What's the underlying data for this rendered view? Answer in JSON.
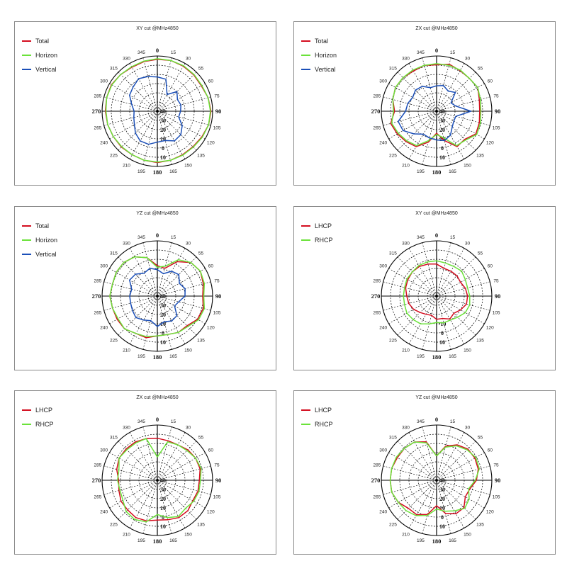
{
  "colors": {
    "total": "#d40d1f",
    "horizon": "#6be23a",
    "vertical": "#1b4fb8",
    "lhcp": "#d40d1f",
    "rhcp": "#6be23a",
    "grid": "#000000",
    "border": "#8a8a8a"
  },
  "chart_data": [
    {
      "type": "polar-line",
      "title": "XY cut @MHz4850",
      "angle_labels": [
        "0",
        "15",
        "30",
        "55",
        "60",
        "75",
        "90",
        "105",
        "120",
        "135",
        "150",
        "165",
        "180",
        "195",
        "210",
        "225",
        "240",
        "265",
        "270",
        "285",
        "300",
        "315",
        "330",
        "345"
      ],
      "radial_labels": [
        "10",
        "0",
        "10",
        "20",
        "30",
        "40"
      ],
      "legend": [
        "Total",
        "Horizon",
        "Vertical"
      ],
      "series": [
        {
          "name": "Total",
          "values": [
            0.94,
            0.95,
            0.94,
            0.93,
            0.92,
            0.95,
            0.97,
            0.96,
            0.93,
            0.91,
            0.91,
            0.92,
            0.93,
            0.92,
            0.91,
            0.92,
            0.92,
            0.93,
            0.94,
            0.95,
            0.96,
            0.94,
            0.92,
            0.93
          ]
        },
        {
          "name": "Horizon",
          "values": [
            0.95,
            0.95,
            0.95,
            0.94,
            0.93,
            0.95,
            0.96,
            0.96,
            0.94,
            0.92,
            0.92,
            0.92,
            0.92,
            0.92,
            0.91,
            0.91,
            0.92,
            0.93,
            0.93,
            0.95,
            0.95,
            0.94,
            0.93,
            0.94
          ]
        },
        {
          "name": "Vertical",
          "values": [
            0.62,
            0.6,
            0.35,
            0.5,
            0.42,
            0.44,
            0.42,
            0.4,
            0.52,
            0.6,
            0.62,
            0.55,
            0.56,
            0.62,
            0.62,
            0.56,
            0.48,
            0.44,
            0.42,
            0.48,
            0.58,
            0.62,
            0.68,
            0.65
          ]
        }
      ]
    },
    {
      "type": "polar-line",
      "title": "ZX cut @MHz4850",
      "angle_labels": [
        "0",
        "15",
        "30",
        "55",
        "60",
        "75",
        "90",
        "105",
        "120",
        "135",
        "150",
        "165",
        "180",
        "195",
        "210",
        "225",
        "240",
        "265",
        "270",
        "285",
        "300",
        "315",
        "330",
        "345"
      ],
      "radial_labels": [
        "10",
        "0",
        "10",
        "20",
        "30",
        "40"
      ],
      "legend": [
        "Total",
        "Horizon",
        "Vertical"
      ],
      "series": [
        {
          "name": "Total",
          "values": [
            0.84,
            0.88,
            0.85,
            0.84,
            0.86,
            0.8,
            0.78,
            0.8,
            0.82,
            0.72,
            0.74,
            0.55,
            0.4,
            0.58,
            0.74,
            0.78,
            0.82,
            0.86,
            0.76,
            0.82,
            0.86,
            0.86,
            0.84,
            0.86
          ]
        },
        {
          "name": "Horizon",
          "values": [
            0.86,
            0.86,
            0.86,
            0.84,
            0.86,
            0.82,
            0.8,
            0.82,
            0.84,
            0.74,
            0.72,
            0.5,
            0.42,
            0.55,
            0.72,
            0.76,
            0.8,
            0.84,
            0.78,
            0.82,
            0.86,
            0.86,
            0.86,
            0.86
          ]
        },
        {
          "name": "Vertical",
          "values": [
            0.46,
            0.48,
            0.42,
            0.48,
            0.3,
            0.36,
            0.62,
            0.36,
            0.36,
            0.4,
            0.5,
            0.55,
            0.52,
            0.5,
            0.48,
            0.58,
            0.7,
            0.72,
            0.56,
            0.54,
            0.5,
            0.54,
            0.52,
            0.44
          ]
        }
      ]
    },
    {
      "type": "polar-line",
      "title": "YZ cut @MHz4850",
      "angle_labels": [
        "0",
        "15",
        "30",
        "55",
        "60",
        "75",
        "90",
        "105",
        "120",
        "135",
        "150",
        "165",
        "180",
        "195",
        "210",
        "225",
        "240",
        "265",
        "270",
        "285",
        "300",
        "315",
        "330",
        "345"
      ],
      "radial_labels": [
        "10",
        "0",
        "10",
        "20",
        "30",
        "40"
      ],
      "legend": [
        "Total",
        "Horizon",
        "Vertical"
      ],
      "series": [
        {
          "name": "Total",
          "values": [
            0.55,
            0.52,
            0.72,
            0.86,
            0.9,
            0.86,
            0.82,
            0.86,
            0.84,
            0.76,
            0.76,
            0.72,
            0.72,
            0.78,
            0.78,
            0.84,
            0.84,
            0.84,
            0.86,
            0.84,
            0.86,
            0.86,
            0.82,
            0.72
          ]
        },
        {
          "name": "Horizon",
          "values": [
            0.52,
            0.56,
            0.76,
            0.86,
            0.9,
            0.88,
            0.84,
            0.88,
            0.86,
            0.78,
            0.76,
            0.72,
            0.72,
            0.76,
            0.78,
            0.84,
            0.82,
            0.84,
            0.86,
            0.84,
            0.86,
            0.86,
            0.82,
            0.72
          ]
        },
        {
          "name": "Vertical",
          "values": [
            0.48,
            0.42,
            0.52,
            0.55,
            0.46,
            0.52,
            0.5,
            0.4,
            0.36,
            0.5,
            0.52,
            0.48,
            0.55,
            0.46,
            0.5,
            0.55,
            0.52,
            0.5,
            0.5,
            0.48,
            0.58,
            0.56,
            0.48,
            0.52
          ]
        }
      ]
    },
    {
      "type": "polar-line",
      "title": "XY cut @MHz4850",
      "angle_labels": [
        "0",
        "15",
        "30",
        "55",
        "60",
        "75",
        "90",
        "105",
        "120",
        "135",
        "150",
        "165",
        "180",
        "195",
        "210",
        "225",
        "240",
        "265",
        "270",
        "285",
        "300",
        "315",
        "330",
        "345"
      ],
      "radial_labels": [
        "10",
        "0",
        "-10"
      ],
      "legend": [
        "LHCP",
        "RHCP"
      ],
      "series": [
        {
          "name": "LHCP",
          "values": [
            0.58,
            0.52,
            0.52,
            0.52,
            0.5,
            0.54,
            0.56,
            0.56,
            0.5,
            0.44,
            0.48,
            0.42,
            0.42,
            0.36,
            0.38,
            0.42,
            0.48,
            0.52,
            0.54,
            0.58,
            0.6,
            0.62,
            0.62,
            0.6
          ]
        },
        {
          "name": "RHCP",
          "values": [
            0.64,
            0.62,
            0.62,
            0.64,
            0.6,
            0.58,
            0.6,
            0.62,
            0.6,
            0.54,
            0.5,
            0.5,
            0.48,
            0.52,
            0.58,
            0.6,
            0.62,
            0.6,
            0.6,
            0.6,
            0.62,
            0.62,
            0.64,
            0.64
          ]
        }
      ]
    },
    {
      "type": "polar-line",
      "title": "ZX cut @MHz4850",
      "angle_labels": [
        "0",
        "15",
        "30",
        "55",
        "60",
        "75",
        "90",
        "105",
        "120",
        "135",
        "150",
        "165",
        "180",
        "195",
        "210",
        "225",
        "240",
        "265",
        "270",
        "285",
        "300",
        "315",
        "330",
        "345"
      ],
      "radial_labels": [
        "10",
        "0",
        "10",
        "20",
        "30",
        "40"
      ],
      "legend": [
        "LHCP",
        "RHCP"
      ],
      "series": [
        {
          "name": "LHCP",
          "values": [
            0.76,
            0.74,
            0.74,
            0.78,
            0.8,
            0.8,
            0.76,
            0.76,
            0.74,
            0.78,
            0.78,
            0.74,
            0.72,
            0.76,
            0.78,
            0.76,
            0.76,
            0.72,
            0.7,
            0.76,
            0.8,
            0.8,
            0.8,
            0.78
          ]
        },
        {
          "name": "RHCP",
          "values": [
            0.42,
            0.72,
            0.74,
            0.76,
            0.8,
            0.82,
            0.78,
            0.78,
            0.76,
            0.72,
            0.76,
            0.7,
            0.62,
            0.78,
            0.82,
            0.8,
            0.72,
            0.7,
            0.72,
            0.72,
            0.8,
            0.78,
            0.78,
            0.78
          ]
        }
      ]
    },
    {
      "type": "polar-line",
      "title": "YZ cut @MHz4850",
      "angle_labels": [
        "0",
        "15",
        "30",
        "55",
        "60",
        "75",
        "90",
        "105",
        "120",
        "135",
        "150",
        "165",
        "180",
        "195",
        "210",
        "225",
        "240",
        "265",
        "270",
        "285",
        "300",
        "315",
        "330",
        "345"
      ],
      "radial_labels": [
        "10",
        "0",
        "10",
        "20",
        "30",
        "40"
      ],
      "legend": [
        "LHCP",
        "RHCP"
      ],
      "series": [
        {
          "name": "LHCP",
          "values": [
            0.44,
            0.64,
            0.74,
            0.8,
            0.8,
            0.78,
            0.72,
            0.62,
            0.6,
            0.7,
            0.7,
            0.62,
            0.46,
            0.64,
            0.72,
            0.72,
            0.8,
            0.84,
            0.84,
            0.84,
            0.82,
            0.82,
            0.8,
            0.72
          ]
        },
        {
          "name": "RHCP",
          "values": [
            0.44,
            0.62,
            0.72,
            0.78,
            0.82,
            0.8,
            0.7,
            0.6,
            0.68,
            0.72,
            0.64,
            0.58,
            0.52,
            0.66,
            0.74,
            0.78,
            0.8,
            0.84,
            0.84,
            0.84,
            0.84,
            0.82,
            0.8,
            0.7
          ]
        }
      ]
    }
  ]
}
